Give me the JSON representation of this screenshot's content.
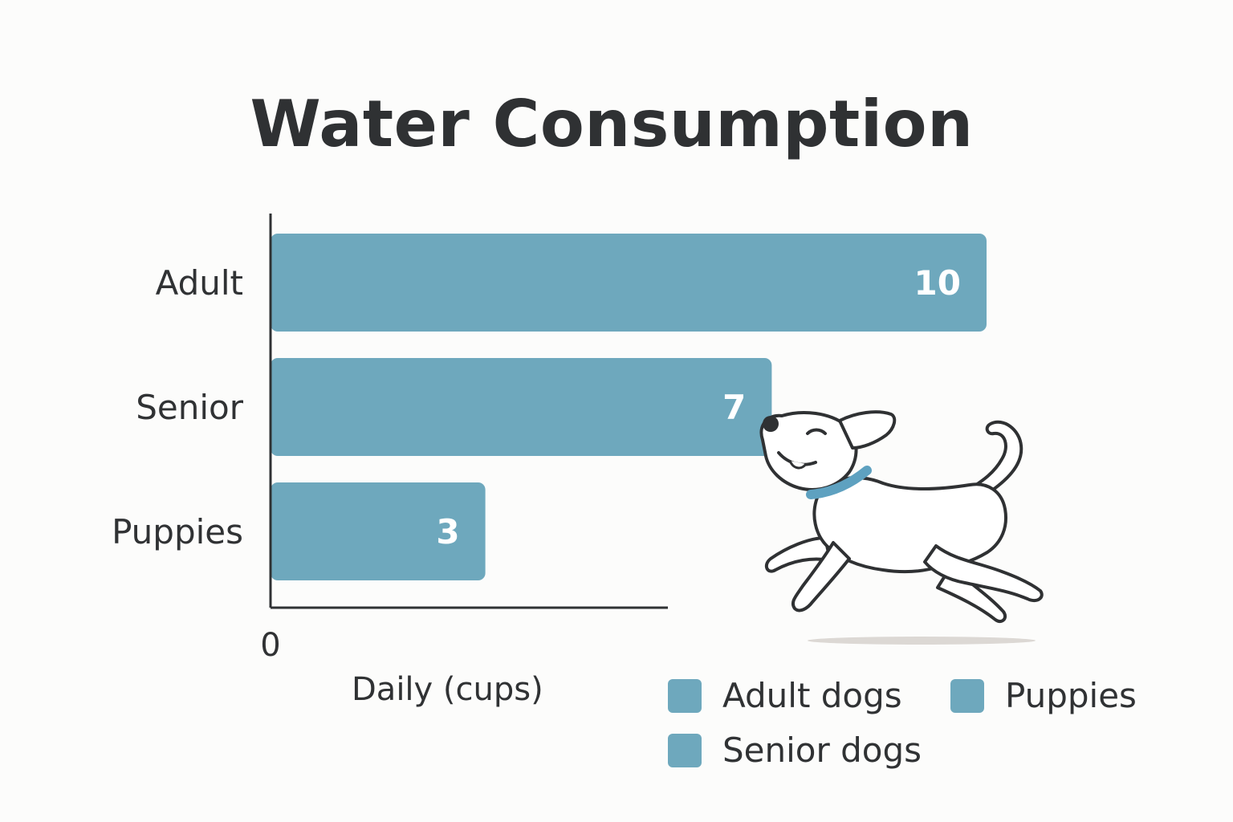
{
  "chart_data": {
    "type": "bar",
    "orientation": "horizontal",
    "title": "Water Consumption",
    "xlabel": "Daily (cups)",
    "ylabel": "",
    "categories": [
      "Adult",
      "Senior",
      "Puppies"
    ],
    "values": [
      10,
      7,
      3
    ],
    "xlim": [
      0,
      10
    ],
    "x_ticks": [
      "0"
    ],
    "data_labels": true,
    "grid": false,
    "bar_color": "#6ea8bd",
    "legend": {
      "placement": "bottom-right",
      "entries": [
        "Adult dogs",
        "Puppies",
        "Senior dogs"
      ]
    }
  },
  "illustration": {
    "icon": "running-dog-icon",
    "collar_color": "#5ea1c0"
  }
}
